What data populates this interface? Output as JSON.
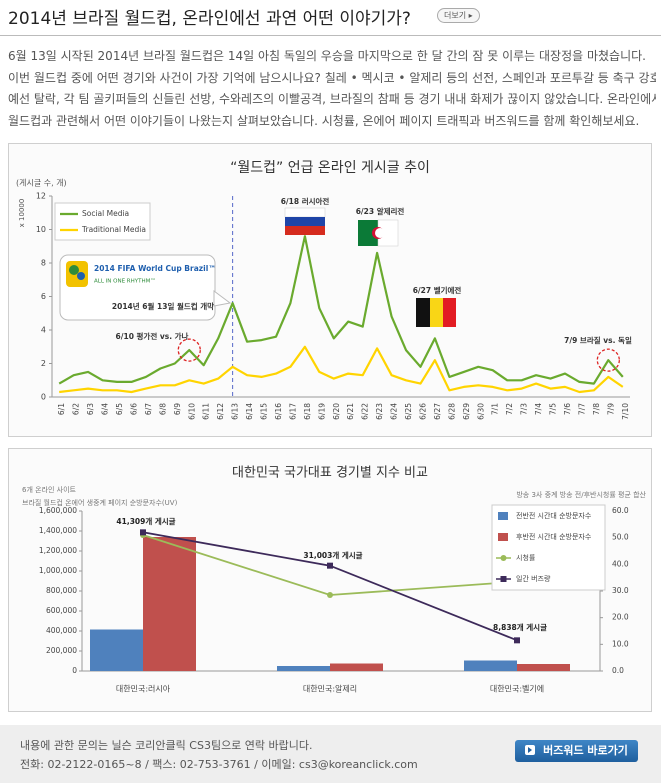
{
  "header": {
    "title": "2014년 브라질 월드컵, 온라인에선 과연 어떤 이야기가?",
    "more_button": "더보기"
  },
  "body": {
    "lines": [
      "6월 13일 시작된 2014년 브라질 월드컵은 14일 아침 독일의 우승을 마지막으로 한 달 간의 잠 못 이루는 대장정을 마쳤습니다.",
      "이번 월드컵 중에 어떤 경기와 사건이 가장 기억에 남으시나요?  칠레 •  멕시코 •  알제리 등의 선전, 스페인과 포르투갈 등 축구 강호의",
      "예선 탈락, 각 팀 골키퍼들의 신들린 선방, 수와레즈의 이빨공격, 브라질의 참패 등 경기 내내 화제가 끊이지 않았습니다. 온라인에서는",
      "월드컵과 관련해서 어떤 이야기들이 나왔는지 살펴보았습니다. 시청률, 온에어 페이지 트래픽과 버즈워드를 함께 확인해보세요."
    ]
  },
  "chart_data": [
    {
      "type": "line",
      "title": "“월드컵” 언급 온라인 게시글 추이",
      "y_unit": "(게시글 수, 개)",
      "y_multiplier": "x 10000",
      "categories": [
        "6/1",
        "6/2",
        "6/3",
        "6/4",
        "6/5",
        "6/6",
        "6/7",
        "6/8",
        "6/9",
        "6/10",
        "6/11",
        "6/12",
        "6/13",
        "6/14",
        "6/15",
        "6/16",
        "6/17",
        "6/18",
        "6/19",
        "6/20",
        "6/21",
        "6/22",
        "6/23",
        "6/24",
        "6/25",
        "6/26",
        "6/27",
        "6/28",
        "6/29",
        "6/30",
        "7/1",
        "7/2",
        "7/3",
        "7/4",
        "7/5",
        "7/6",
        "7/7",
        "7/8",
        "7/9",
        "7/10"
      ],
      "series": [
        {
          "name": "Social Media",
          "color": "#6aaa2e",
          "values": [
            0.8,
            1.3,
            1.5,
            1.0,
            0.9,
            0.9,
            1.2,
            1.7,
            2.0,
            2.8,
            1.9,
            3.5,
            5.6,
            3.3,
            3.4,
            3.6,
            5.6,
            9.6,
            5.3,
            3.5,
            4.5,
            4.2,
            8.6,
            4.8,
            2.8,
            1.8,
            3.5,
            1.2,
            1.5,
            1.8,
            1.6,
            1.0,
            1.0,
            1.3,
            1.1,
            1.4,
            0.9,
            0.8,
            2.2,
            1.2
          ]
        },
        {
          "name": "Traditional Media",
          "color": "#ffd400",
          "values": [
            0.3,
            0.4,
            0.5,
            0.4,
            0.4,
            0.3,
            0.5,
            0.7,
            0.7,
            1.0,
            0.8,
            1.1,
            1.8,
            1.3,
            1.2,
            1.4,
            1.8,
            3.0,
            1.5,
            1.1,
            1.4,
            1.3,
            2.9,
            1.3,
            1.0,
            0.8,
            2.2,
            0.4,
            0.6,
            0.7,
            0.6,
            0.4,
            0.5,
            0.8,
            0.5,
            0.6,
            0.3,
            0.4,
            1.2,
            0.6
          ]
        }
      ],
      "ylim": [
        0,
        12
      ],
      "yticks": [
        0,
        2,
        4,
        6,
        8,
        10,
        12
      ],
      "grid": false,
      "legend": "top-left",
      "logo": [
        "2014 FIFA World Cup Brazil™",
        "ALL IN ONE RHYTHM™"
      ],
      "annotations": [
        "6/18 러시아전",
        "6/23 알제리전",
        "6/27 벨기에전",
        "7/9 브라질 vs. 독일",
        "6/10 평가전 vs. 가나",
        "2014년 6월 13일 월드컵 개막"
      ]
    },
    {
      "type": "combo",
      "title": "대한민국 국가대표 경기별 지수 비교",
      "notes_left": [
        "6개 온라인 사이트",
        "브라질 월드컵 온에어 생중계 페이지 순방문자수(UV)"
      ],
      "note_right": "방송 3사 중계 방송 전/후반시청률 평균 합산",
      "categories": [
        "대한민국:러시아",
        "대한민국:알제리",
        "대한민국:벨기에"
      ],
      "series": [
        {
          "name": "전반전 시간대 순방문자수",
          "type": "bar",
          "color": "#4f81bd",
          "values": [
            415000,
            50000,
            105000
          ]
        },
        {
          "name": "후반전 시간대 순방문자수",
          "type": "bar",
          "color": "#c0504d",
          "values": [
            1340000,
            75000,
            70000
          ]
        },
        {
          "name": "시청률",
          "type": "line",
          "axis": "y2",
          "marker": "circle",
          "color": "#9bbb59",
          "values": [
            51,
            28.5,
            33.5
          ]
        },
        {
          "name": "일간 버즈량",
          "type": "line",
          "axis": "y2",
          "marker": "square",
          "color": "#3d2a5a",
          "values": [
            52,
            39.5,
            11.5
          ]
        }
      ],
      "ylim": [
        0,
        1600000
      ],
      "yticks": [
        0,
        {
          "value": 200000,
          "label": "200,000"
        },
        {
          "value": 400000,
          "label": "400,000"
        },
        {
          "value": 600000,
          "label": "600,000"
        },
        {
          "value": 800000,
          "label": "800,000"
        },
        {
          "value": 1000000,
          "label": "1,000,000"
        },
        {
          "value": 1200000,
          "label": "1,200,000"
        },
        {
          "value": 1400000,
          "label": "1,400,000"
        },
        {
          "value": 1600000,
          "label": "1,600,000"
        }
      ],
      "y2lim": [
        0,
        60
      ],
      "y2ticks": [
        {
          "value": 0,
          "label": "0.0"
        },
        {
          "value": 10,
          "label": "10.0"
        },
        {
          "value": 20,
          "label": "20.0"
        },
        {
          "value": 30,
          "label": "30.0"
        },
        {
          "value": 40,
          "label": "40.0"
        },
        {
          "value": 50,
          "label": "50.0"
        },
        {
          "value": 60,
          "label": "60.0"
        }
      ],
      "grid": false,
      "legend": "top-right",
      "annotations": [
        "41,309개 게시글",
        "31,003개 게시글",
        "8,838개 게시글"
      ]
    }
  ],
  "footer": {
    "lines": [
      "내용에 관한 문의는 닐슨 코리안클릭 CS3팀으로 연락 바랍니다.",
      "전화: 02-2122-0165~8 / 팩스: 02-753-3761 / 이메일: cs3@koreanclick.com"
    ],
    "button": "버즈워드 바로가기"
  }
}
